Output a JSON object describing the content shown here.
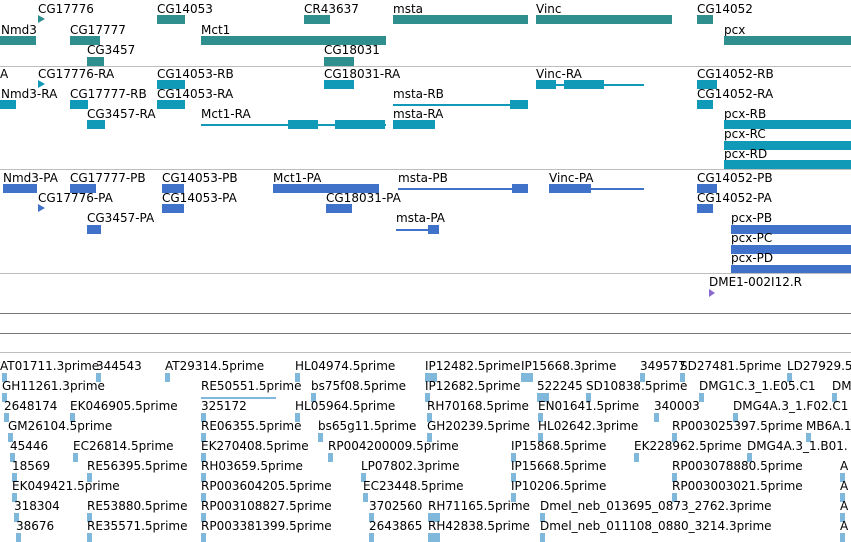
{
  "colors": {
    "gene": "#2f8f8f",
    "transcript": "#109ab8",
    "protein": "#3f72c8",
    "est": "#80b8dc",
    "insertion": "#8a6ad0"
  },
  "tracks": {
    "genes": {
      "labels": [
        "CG17776",
        "CG14053",
        "CR43637",
        "msta",
        "Vinc",
        "CG14052",
        "Nmd3",
        "CG17777",
        "Mct1",
        "pcx",
        "CG3457",
        "CG18031"
      ]
    },
    "transcripts": {
      "labels": [
        "A",
        "CG17776-RA",
        "CG14053-RB",
        "CG18031-RA",
        "Vinc-RA",
        "CG14052-RB",
        "Nmd3-RA",
        "CG17777-RB",
        "CG14053-RA",
        "msta-RB",
        "CG14052-RA",
        "CG3457-RA",
        "Mct1-RA",
        "msta-RA",
        "pcx-RB",
        "pcx-RC",
        "pcx-RD"
      ]
    },
    "proteins": {
      "labels": [
        "Nmd3-PA",
        "CG17777-PB",
        "CG14053-PB",
        "Mct1-PA",
        "msta-PB",
        "Vinc-PA",
        "CG14052-PB",
        "CG17776-PA",
        "CG14053-PA",
        "CG18031-PA",
        "CG14052-PA",
        "CG3457-PA",
        "msta-PA",
        "pcx-PB",
        "pcx-PC",
        "pcx-PD"
      ]
    },
    "insertions": {
      "labels": [
        "DME1-002I12.R"
      ]
    },
    "ests": {
      "labels": [
        "AT01711.3prime",
        "344543",
        "AT29314.5prime",
        "HL04974.5prime",
        "IP12482.5prime",
        "IP15668.3prime",
        "349577",
        "SD27481.5prime",
        "LD27929.5",
        "GH11261.3prime",
        "RE50551.5prime",
        "bs75f08.5prime",
        "IP12682.5prime",
        "522245",
        "SD10838.5prime",
        "DMG1C.3_1.E05.C1",
        "DM",
        "2648174",
        "EK046905.5prime",
        "325172",
        "HL05964.5prime",
        "RH70168.5prime",
        "EN01641.5prime",
        "340003",
        "DMG4A.3_1.F02.C1",
        "GM26104.5prime",
        "RE06355.5prime",
        "bs65g11.5prime",
        "GH20239.5prime",
        "HL02642.3prime",
        "RP003025397.5prime",
        "MB6A.1",
        "45446",
        "EC26814.5prime",
        "EK270408.5prime",
        "RP004200009.5prime",
        "IP15868.5prime",
        "EK228962.5prime",
        "DMG4A.3_1.B01.",
        "18569",
        "RE56395.5prime",
        "RH03659.5prime",
        "LP07802.3prime",
        "IP15668.5prime",
        "RP003078880.5prime",
        "A",
        "EK049421.5prime",
        "RP003604205.5prime",
        "EC23448.5prime",
        "IP10206.5prime",
        "RP003003021.5prime",
        "A",
        "318304",
        "RE53880.5prime",
        "RP003108827.5prime",
        "3702560",
        "RH71165.5prime",
        "Dmel_neb_013695_0873_2762.3prime",
        "A",
        "38676",
        "RE35571.5prime",
        "RP003381399.5prime",
        "2643865",
        "RH42838.5prime",
        "Dmel_neb_011108_0880_3214.3prime",
        "A"
      ]
    }
  }
}
